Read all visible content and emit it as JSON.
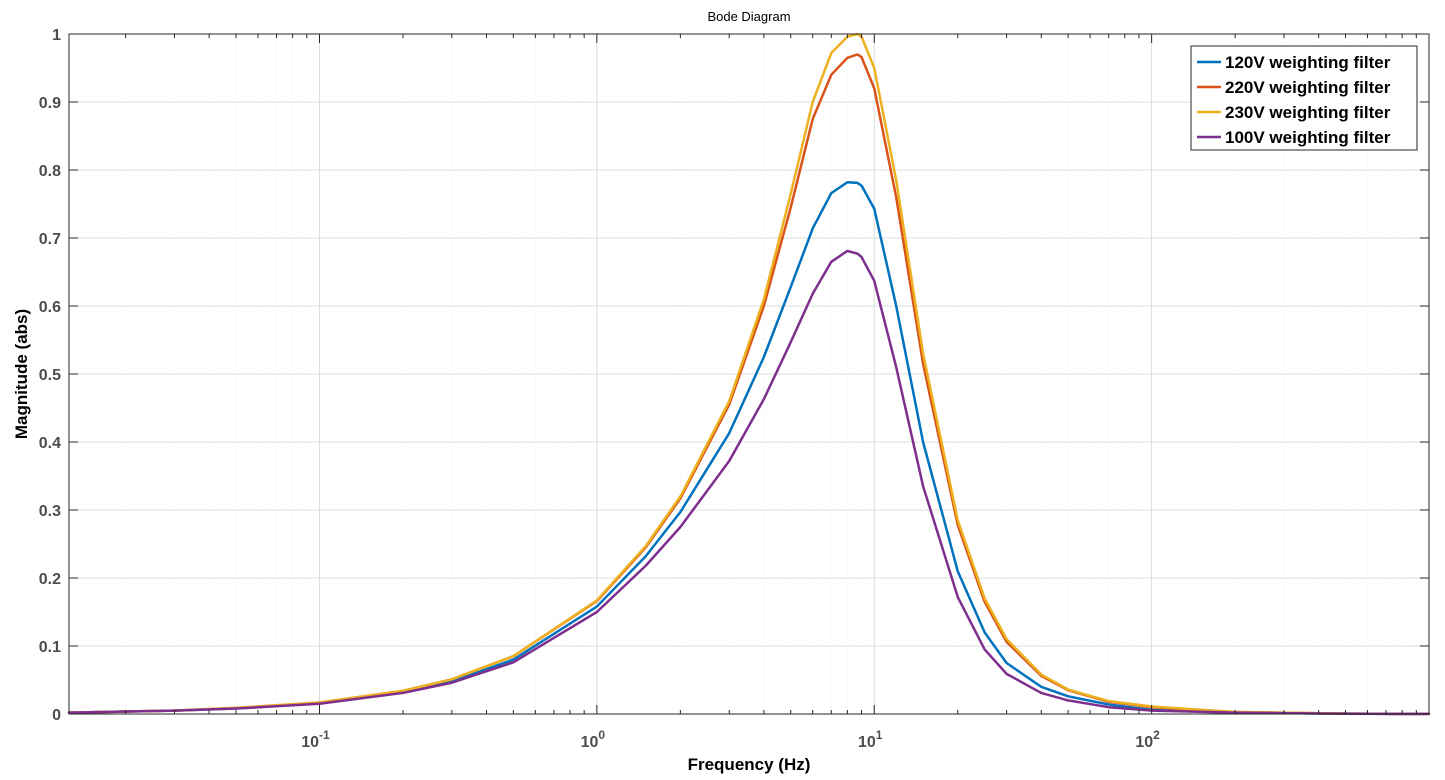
{
  "chart_data": {
    "type": "line",
    "title": "Bode Diagram",
    "xlabel": "Frequency  (Hz)",
    "ylabel": "Magnitude (abs)",
    "xscale": "log",
    "xlim": [
      0.0125,
      1000
    ],
    "ylim": [
      0,
      1
    ],
    "grid": true,
    "legend_position": "top-right",
    "x_ticks": [
      {
        "value": 0.1,
        "base": "10",
        "exp": "-1"
      },
      {
        "value": 1,
        "base": "10",
        "exp": "0"
      },
      {
        "value": 10,
        "base": "10",
        "exp": "1"
      },
      {
        "value": 100,
        "base": "10",
        "exp": "2"
      }
    ],
    "y_ticks": [
      {
        "value": 0,
        "label": "0"
      },
      {
        "value": 0.1,
        "label": "0.1"
      },
      {
        "value": 0.2,
        "label": "0.2"
      },
      {
        "value": 0.3,
        "label": "0.3"
      },
      {
        "value": 0.4,
        "label": "0.4"
      },
      {
        "value": 0.5,
        "label": "0.5"
      },
      {
        "value": 0.6,
        "label": "0.6"
      },
      {
        "value": 0.7,
        "label": "0.7"
      },
      {
        "value": 0.8,
        "label": "0.8"
      },
      {
        "value": 0.9,
        "label": "0.9"
      },
      {
        "value": 1,
        "label": "1"
      }
    ],
    "x": [
      0.0125,
      0.03,
      0.05,
      0.1,
      0.2,
      0.3,
      0.5,
      1,
      1.5,
      2,
      3,
      4,
      5,
      6,
      7,
      8,
      8.7,
      9,
      10,
      12,
      15,
      20,
      25,
      30,
      40,
      50,
      70,
      100,
      200,
      500,
      1000
    ],
    "series": [
      {
        "name": "120V weighting filter",
        "color": "#0072BD",
        "values": [
          0.002,
          0.005,
          0.008,
          0.016,
          0.032,
          0.048,
          0.08,
          0.158,
          0.232,
          0.297,
          0.413,
          0.525,
          0.628,
          0.714,
          0.766,
          0.782,
          0.781,
          0.777,
          0.743,
          0.6,
          0.4,
          0.21,
          0.12,
          0.075,
          0.04,
          0.026,
          0.014,
          0.006,
          0.002,
          0.0005,
          0.0001
        ]
      },
      {
        "name": "220V weighting filter",
        "color": "#D95319",
        "values": [
          0.002,
          0.005,
          0.009,
          0.017,
          0.034,
          0.051,
          0.085,
          0.166,
          0.245,
          0.317,
          0.455,
          0.6,
          0.745,
          0.875,
          0.94,
          0.965,
          0.97,
          0.966,
          0.92,
          0.76,
          0.515,
          0.278,
          0.165,
          0.106,
          0.056,
          0.035,
          0.018,
          0.01,
          0.003,
          0.0005,
          0.0001
        ]
      },
      {
        "name": "230V weighting filter",
        "color": "#EDB120",
        "values": [
          0.002,
          0.005,
          0.009,
          0.017,
          0.034,
          0.051,
          0.085,
          0.167,
          0.247,
          0.32,
          0.46,
          0.61,
          0.765,
          0.9,
          0.972,
          0.996,
          1.0,
          0.996,
          0.95,
          0.785,
          0.53,
          0.285,
          0.17,
          0.11,
          0.058,
          0.036,
          0.019,
          0.011,
          0.003,
          0.0005,
          0.0001
        ]
      },
      {
        "name": "100V weighting filter",
        "color": "#7E2F8E",
        "values": [
          0.002,
          0.005,
          0.008,
          0.015,
          0.031,
          0.046,
          0.076,
          0.15,
          0.218,
          0.275,
          0.372,
          0.463,
          0.547,
          0.618,
          0.665,
          0.681,
          0.677,
          0.672,
          0.637,
          0.51,
          0.335,
          0.172,
          0.095,
          0.059,
          0.031,
          0.02,
          0.01,
          0.005,
          0.002,
          0.0004,
          0.0001
        ]
      }
    ]
  }
}
